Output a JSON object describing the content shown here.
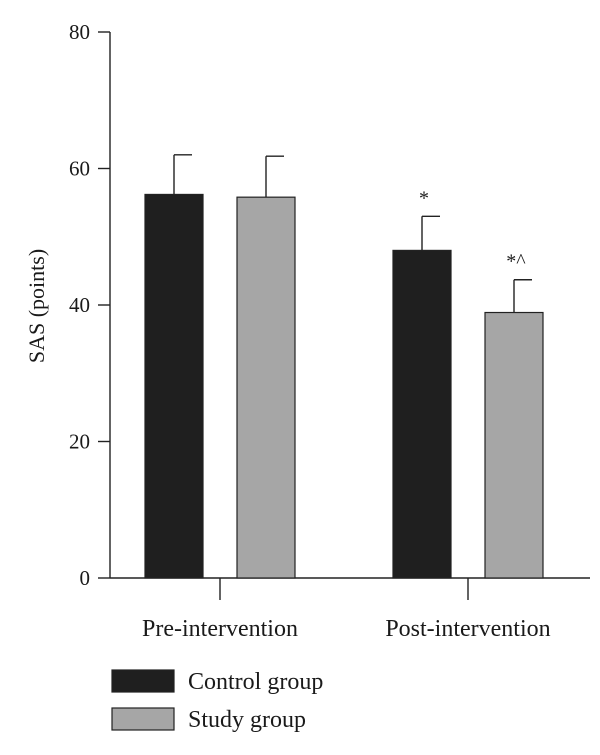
{
  "chart_data": {
    "type": "bar",
    "categories": [
      "Pre-intervention",
      "Post-intervention"
    ],
    "series": [
      {
        "name": "Control group",
        "color": "#1f1f1f",
        "values": [
          56.2,
          48.0
        ],
        "errors": [
          5.8,
          5.0
        ],
        "annotations": [
          "",
          "*"
        ]
      },
      {
        "name": "Study group",
        "color": "#a6a6a6",
        "values": [
          55.8,
          38.9
        ],
        "errors": [
          6.0,
          4.8
        ],
        "annotations": [
          "",
          "*^"
        ]
      }
    ],
    "ylabel": "SAS (points)",
    "xlabel": "",
    "ylim": [
      0,
      80
    ],
    "yticks": [
      0,
      20,
      40,
      60,
      80
    ],
    "grid": false,
    "legend_position": "bottom-left"
  }
}
